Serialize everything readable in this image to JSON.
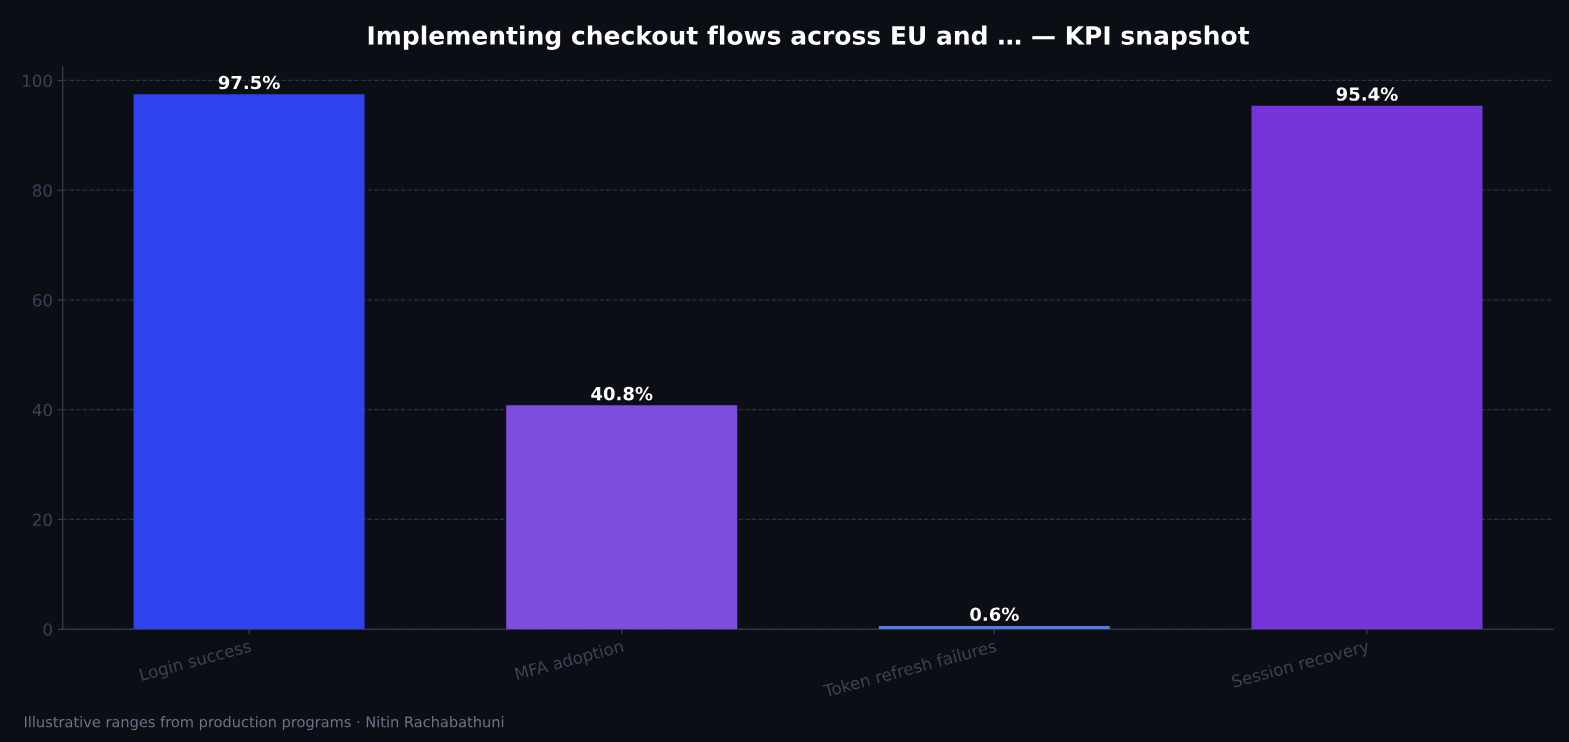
{
  "chart_data": {
    "type": "bar",
    "title": "Implementing checkout flows across EU and … — KPI snapshot",
    "categories": [
      "Login success",
      "MFA adoption",
      "Token refresh failures",
      "Session recovery"
    ],
    "values": [
      97.5,
      40.8,
      0.6,
      95.4
    ],
    "colors": [
      "#2e43ee",
      "#7f4ddd",
      "#4c7ee6",
      "#7434da"
    ],
    "value_labels": [
      "97.5%",
      "40.8%",
      "0.6%",
      "95.4%"
    ],
    "ylim": [
      0,
      102.5
    ],
    "yticks": [
      0,
      20,
      40,
      60,
      80,
      100
    ],
    "grid": "y",
    "annotations": [
      "Illustrative ranges from production programs · Nitin Rachabathuni"
    ]
  }
}
